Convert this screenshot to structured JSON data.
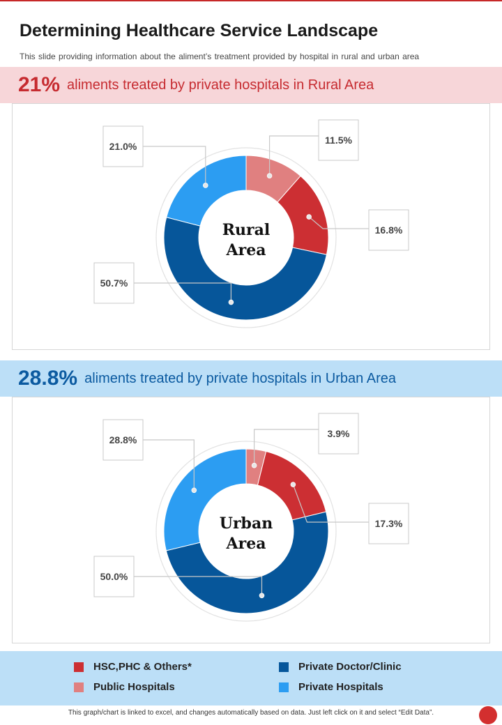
{
  "header": {
    "title": "Determining Healthcare Service Landscape",
    "subtitle": "This slide providing information about the aliment’s treatment provided by hospital in rural and urban area"
  },
  "rural_band": {
    "percent": "21%",
    "text": "aliments treated by private hospitals in Rural Area"
  },
  "urban_band": {
    "percent": "28.8%",
    "text": "aliments treated by private hospitals in Urban Area"
  },
  "colors": {
    "hsc": "#cc2f33",
    "public": "#e08080",
    "private_doctor": "#06569a",
    "private_hospitals": "#2c9df2",
    "connector": "#c8c8c8"
  },
  "legend": [
    {
      "key": "hsc",
      "label": "HSC,PHC & Others*"
    },
    {
      "key": "private_doctor",
      "label": "Private Doctor/Clinic"
    },
    {
      "key": "public",
      "label": "Public Hospitals"
    },
    {
      "key": "private_hospitals",
      "label": "Private Hospitals"
    }
  ],
  "footer": {
    "text": "This graph/chart is linked to excel, and changes automatically based on data. Just left click on it and select “Edit Data”."
  },
  "chart_data": [
    {
      "type": "pie",
      "variant": "donut",
      "title": "Rural Area",
      "center_label": [
        "Rural",
        "Area"
      ],
      "categories": [
        "Public Hospitals",
        "HSC,PHC & Others*",
        "Private Doctor/Clinic",
        "Private Hospitals"
      ],
      "values": [
        11.5,
        16.8,
        50.7,
        21.0
      ],
      "labels": [
        "11.5%",
        "16.8%",
        "50.7%",
        "21.0%"
      ]
    },
    {
      "type": "pie",
      "variant": "donut",
      "title": "Urban Area",
      "center_label": [
        "Urban",
        "Area"
      ],
      "categories": [
        "Public Hospitals",
        "HSC,PHC & Others*",
        "Private Doctor/Clinic",
        "Private Hospitals"
      ],
      "values": [
        3.9,
        17.3,
        50.0,
        28.8
      ],
      "labels": [
        "3.9%",
        "17.3%",
        "50.0%",
        "28.8%"
      ]
    }
  ]
}
